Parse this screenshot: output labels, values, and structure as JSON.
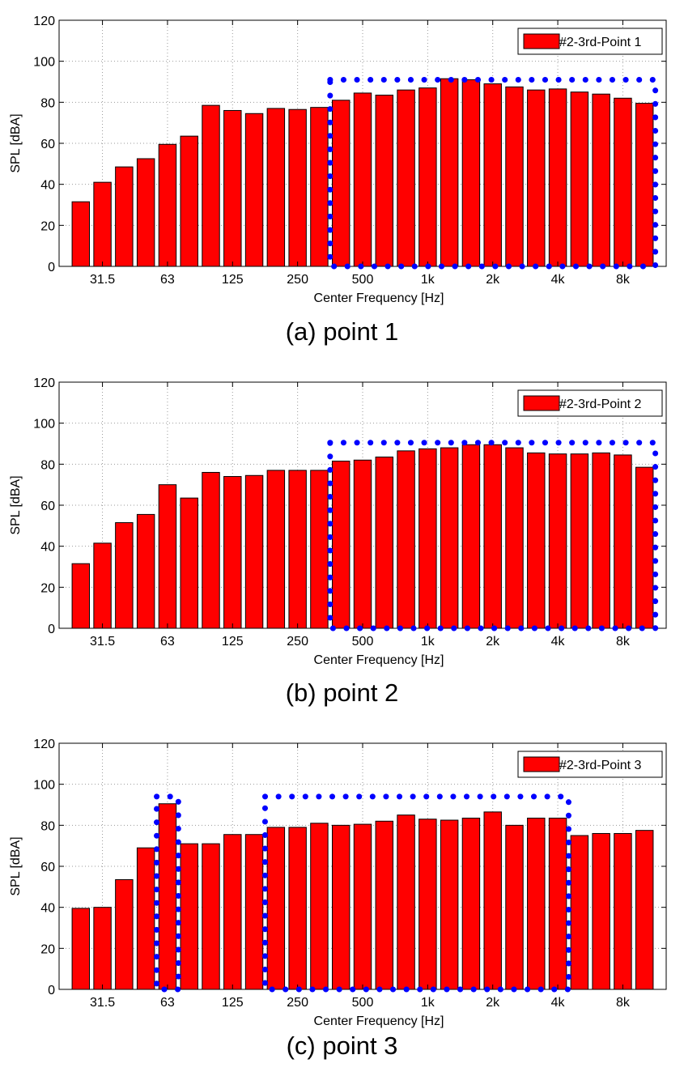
{
  "captions": [
    "(a)  point 1",
    "(b)  point 2",
    "(c)  point 3"
  ],
  "chart_data": [
    {
      "type": "bar",
      "xlabel": "Center Frequency [Hz]",
      "ylabel": "SPL [dBA]",
      "ylim": [
        0,
        120
      ],
      "yticks": [
        0,
        20,
        40,
        60,
        80,
        100,
        120
      ],
      "xtick_labels": [
        "31.5",
        "63",
        "125",
        "250",
        "500",
        "1k",
        "2k",
        "4k",
        "8k"
      ],
      "grid": true,
      "legend_position": "top-right",
      "series": [
        {
          "name": "#2-3rd-Point 1",
          "color": "#ff0000",
          "values": [
            31.5,
            41,
            48.5,
            52.5,
            59.5,
            63.5,
            78.5,
            76,
            74.5,
            77,
            76.5,
            77.5,
            81,
            84.5,
            83.5,
            86,
            87,
            91.5,
            91,
            89,
            87.5,
            86,
            86.5,
            85,
            84,
            82,
            79.5
          ]
        }
      ],
      "highlight_regions": [
        {
          "bar_start": 12,
          "bar_end": 26,
          "top": 91,
          "color": "#0000ff"
        }
      ]
    },
    {
      "type": "bar",
      "xlabel": "Center Frequency [Hz]",
      "ylabel": "SPL [dBA]",
      "ylim": [
        0,
        120
      ],
      "yticks": [
        0,
        20,
        40,
        60,
        80,
        100,
        120
      ],
      "xtick_labels": [
        "31.5",
        "63",
        "125",
        "250",
        "500",
        "1k",
        "2k",
        "4k",
        "8k"
      ],
      "grid": true,
      "legend_position": "top-right",
      "series": [
        {
          "name": "#2-3rd-Point 2",
          "color": "#ff0000",
          "values": [
            31.5,
            41.5,
            51.5,
            55.5,
            70,
            63.5,
            76,
            74,
            74.5,
            77,
            77,
            77,
            81.5,
            82,
            83.5,
            86.5,
            87.5,
            88,
            89.5,
            89.5,
            88,
            85.5,
            85,
            85,
            85.5,
            84.5,
            78.5
          ]
        }
      ],
      "highlight_regions": [
        {
          "bar_start": 12,
          "bar_end": 26,
          "top": 90.5,
          "color": "#0000ff"
        }
      ]
    },
    {
      "type": "bar",
      "xlabel": "Center Frequency [Hz]",
      "ylabel": "SPL [dBA]",
      "ylim": [
        0,
        120
      ],
      "yticks": [
        0,
        20,
        40,
        60,
        80,
        100,
        120
      ],
      "xtick_labels": [
        "31.5",
        "63",
        "125",
        "250",
        "500",
        "1k",
        "2k",
        "4k",
        "8k"
      ],
      "grid": true,
      "legend_position": "top-right",
      "series": [
        {
          "name": "#2-3rd-Point 3",
          "color": "#ff0000",
          "values": [
            39.5,
            40,
            53.5,
            69,
            90.5,
            71,
            71,
            75.5,
            75.5,
            79,
            79,
            81,
            80,
            80.5,
            82,
            85,
            83,
            82.5,
            83.5,
            86.5,
            80,
            83.5,
            83.5,
            75,
            76,
            76,
            77.5
          ]
        }
      ],
      "highlight_regions": [
        {
          "bar_start": 4,
          "bar_end": 4,
          "top": 94,
          "color": "#0000ff"
        },
        {
          "bar_start": 9,
          "bar_end": 22,
          "top": 94,
          "color": "#0000ff"
        }
      ]
    }
  ]
}
